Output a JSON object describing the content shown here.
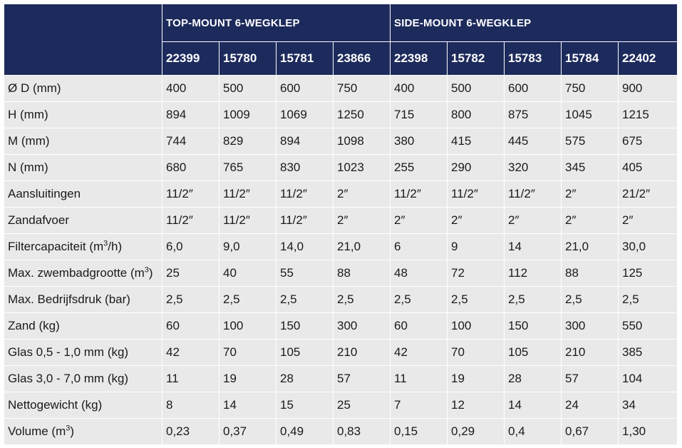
{
  "groups": [
    {
      "label": "TOP-MOUNT 6-WEGKLEP",
      "span": 4
    },
    {
      "label": "SIDE-MOUNT 6-WEGKLEP",
      "span": 5
    }
  ],
  "models": [
    "22399",
    "15780",
    "15781",
    "23866",
    "22398",
    "15782",
    "15783",
    "15784",
    "22402"
  ],
  "rows": [
    {
      "label": "Ø D (mm)",
      "values": [
        "400",
        "500",
        "600",
        "750",
        "400",
        "500",
        "600",
        "750",
        "900"
      ]
    },
    {
      "label": "H (mm)",
      "values": [
        "894",
        "1009",
        "1069",
        "1250",
        "715",
        "800",
        "875",
        "1045",
        "1215"
      ]
    },
    {
      "label": "M (mm)",
      "values": [
        "744",
        "829",
        "894",
        "1098",
        "380",
        "415",
        "445",
        "575",
        "675"
      ]
    },
    {
      "label": "N (mm)",
      "values": [
        "680",
        "765",
        "830",
        "1023",
        "255",
        "290",
        "320",
        "345",
        "405"
      ]
    },
    {
      "label": "Aansluitingen",
      "values": [
        "11/2″",
        "11/2″",
        "11/2″",
        "2″",
        "11/2″",
        "11/2″",
        "11/2″",
        "2″",
        "21/2″"
      ]
    },
    {
      "label": "Zandafvoer",
      "values": [
        "11/2″",
        "11/2″",
        "11/2″",
        "2″",
        "2″",
        "2″",
        "2″",
        "2″",
        "2″"
      ]
    },
    {
      "label_pre": "Filtercapaciteit (m",
      "label_sup": "3",
      "label_post": "/h)",
      "values": [
        "6,0",
        "9,0",
        "14,0",
        "21,0",
        "6",
        "9",
        "14",
        "21,0",
        "30,0"
      ]
    },
    {
      "label_pre": "Max. zwembadgrootte (m",
      "label_sup": "3",
      "label_post": ")",
      "values": [
        "25",
        "40",
        "55",
        "88",
        "48",
        "72",
        "112",
        "88",
        "125"
      ]
    },
    {
      "label": "Max. Bedrijfsdruk (bar)",
      "values": [
        "2,5",
        "2,5",
        "2,5",
        "2,5",
        "2,5",
        "2,5",
        "2,5",
        "2,5",
        "2,5"
      ]
    },
    {
      "label": "Zand (kg)",
      "values": [
        "60",
        "100",
        "150",
        "300",
        "60",
        "100",
        "150",
        "300",
        "550"
      ]
    },
    {
      "label": "Glas 0,5 - 1,0 mm (kg)",
      "values": [
        "42",
        "70",
        "105",
        "210",
        "42",
        "70",
        "105",
        "210",
        "385"
      ]
    },
    {
      "label": "Glas 3,0 - 7,0 mm (kg)",
      "values": [
        "11",
        "19",
        "28",
        "57",
        "11",
        "19",
        "28",
        "57",
        "104"
      ]
    },
    {
      "label": "Nettogewicht (kg)",
      "values": [
        "8",
        "14",
        "15",
        "25",
        "7",
        "12",
        "14",
        "24",
        "34"
      ]
    },
    {
      "label_pre": "Volume (m",
      "label_sup": "3",
      "label_post": ")",
      "values": [
        "0,23",
        "0,37",
        "0,49",
        "0,83",
        "0,15",
        "0,29",
        "0,4",
        "0,67",
        "1,30"
      ]
    }
  ],
  "colors": {
    "header_bg": "#1d2a5c",
    "cell_bg": "#e9e9ea"
  }
}
